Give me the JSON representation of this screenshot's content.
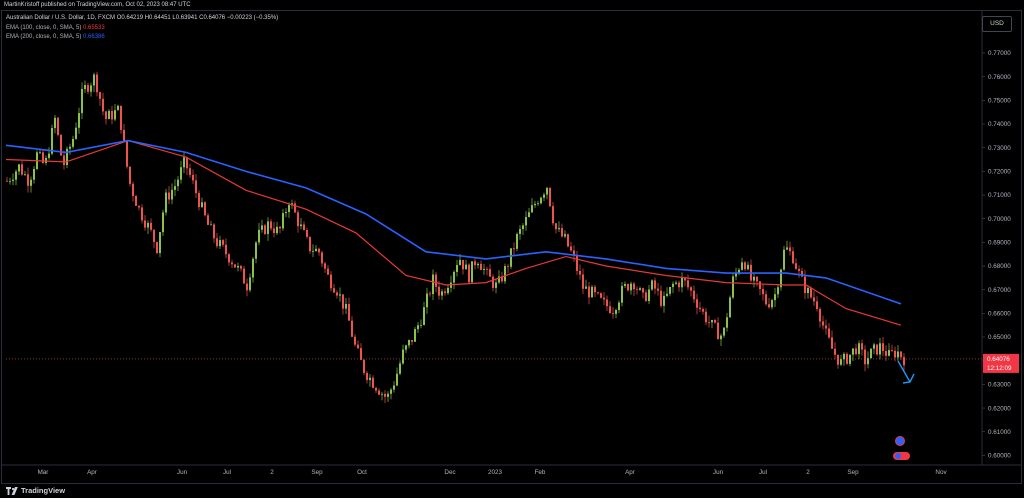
{
  "publisher": "MartinKristoff published on TradingView.com, Oct 02, 2023 08:47 UTC",
  "legend": {
    "title": "Australian Dollar / U.S. Dollar, 1D, FXCM",
    "ohlc": "O0.64219 H0.64451 L0.63941 C0.64076 −0.00223 (−0.35%)",
    "ema100_label": "EMA (100, close, 0, SMA, 5)",
    "ema100_value": "0.65533",
    "ema200_label": "EMA (200, close, 0, SMA, 5)",
    "ema200_value": "0.66386"
  },
  "currency_button": "USD",
  "footer_brand": "TradingView",
  "colors": {
    "up": "#26a69a",
    "up_fill": "#8bc34a",
    "down": "#ef5350",
    "ema100": "#e53935",
    "ema200": "#2962ff",
    "arrow": "#2196f3"
  },
  "chart_data": {
    "type": "candlestick",
    "symbol": "AUD/USD",
    "timeframe": "1D",
    "ylim": [
      0.595,
      0.78
    ],
    "y_ticks": [
      "0.77000",
      "0.76000",
      "0.75000",
      "0.74000",
      "0.73000",
      "0.72000",
      "0.71000",
      "0.70000",
      "0.69000",
      "0.68000",
      "0.67000",
      "0.66000",
      "0.65000",
      "0.64000",
      "0.63000",
      "0.62000",
      "0.61000",
      "0.60000"
    ],
    "x_ticks": [
      "Mar",
      "Apr",
      "Jun",
      "Jul",
      "2",
      "Sep",
      "Oct",
      "Dec",
      "2023",
      "Feb",
      "Apr",
      "Jun",
      "Jul",
      "2",
      "Sep",
      "Nov"
    ],
    "last_price_label": "0.64076",
    "countdown_label": "12:12:09",
    "price_path": [
      [
        0,
        0.716
      ],
      [
        12,
        0.722
      ],
      [
        22,
        0.716
      ],
      [
        30,
        0.727
      ],
      [
        38,
        0.722
      ],
      [
        48,
        0.742
      ],
      [
        56,
        0.722
      ],
      [
        66,
        0.734
      ],
      [
        76,
        0.754
      ],
      [
        88,
        0.76
      ],
      [
        98,
        0.742
      ],
      [
        112,
        0.746
      ],
      [
        122,
        0.716
      ],
      [
        132,
        0.704
      ],
      [
        142,
        0.696
      ],
      [
        150,
        0.688
      ],
      [
        158,
        0.708
      ],
      [
        168,
        0.714
      ],
      [
        178,
        0.724
      ],
      [
        190,
        0.71
      ],
      [
        200,
        0.698
      ],
      [
        210,
        0.69
      ],
      [
        222,
        0.684
      ],
      [
        232,
        0.678
      ],
      [
        240,
        0.672
      ],
      [
        250,
        0.692
      ],
      [
        262,
        0.698
      ],
      [
        272,
        0.694
      ],
      [
        282,
        0.708
      ],
      [
        292,
        0.698
      ],
      [
        302,
        0.688
      ],
      [
        312,
        0.686
      ],
      [
        320,
        0.676
      ],
      [
        330,
        0.67
      ],
      [
        340,
        0.66
      ],
      [
        348,
        0.646
      ],
      [
        356,
        0.637
      ],
      [
        364,
        0.632
      ],
      [
        372,
        0.628
      ],
      [
        380,
        0.624
      ],
      [
        388,
        0.632
      ],
      [
        396,
        0.643
      ],
      [
        406,
        0.65
      ],
      [
        416,
        0.66
      ],
      [
        426,
        0.674
      ],
      [
        434,
        0.668
      ],
      [
        442,
        0.674
      ],
      [
        452,
        0.684
      ],
      [
        462,
        0.676
      ],
      [
        470,
        0.684
      ],
      [
        480,
        0.676
      ],
      [
        490,
        0.671
      ],
      [
        500,
        0.68
      ],
      [
        510,
        0.692
      ],
      [
        520,
        0.7
      ],
      [
        530,
        0.708
      ],
      [
        540,
        0.714
      ],
      [
        548,
        0.696
      ],
      [
        558,
        0.691
      ],
      [
        566,
        0.684
      ],
      [
        576,
        0.671
      ],
      [
        586,
        0.668
      ],
      [
        596,
        0.664
      ],
      [
        606,
        0.662
      ],
      [
        616,
        0.67
      ],
      [
        626,
        0.674
      ],
      [
        636,
        0.666
      ],
      [
        646,
        0.672
      ],
      [
        656,
        0.664
      ],
      [
        666,
        0.672
      ],
      [
        676,
        0.674
      ],
      [
        686,
        0.668
      ],
      [
        696,
        0.66
      ],
      [
        706,
        0.654
      ],
      [
        716,
        0.65
      ],
      [
        726,
        0.674
      ],
      [
        736,
        0.684
      ],
      [
        744,
        0.674
      ],
      [
        752,
        0.67
      ],
      [
        760,
        0.664
      ],
      [
        768,
        0.668
      ],
      [
        778,
        0.688
      ],
      [
        786,
        0.684
      ],
      [
        794,
        0.674
      ],
      [
        802,
        0.668
      ],
      [
        810,
        0.664
      ],
      [
        818,
        0.652
      ],
      [
        826,
        0.644
      ],
      [
        834,
        0.639
      ],
      [
        842,
        0.642
      ],
      [
        850,
        0.646
      ],
      [
        858,
        0.64
      ],
      [
        866,
        0.644
      ],
      [
        874,
        0.646
      ],
      [
        882,
        0.642
      ],
      [
        890,
        0.644
      ],
      [
        897,
        0.641
      ]
    ],
    "ema100_path": [
      [
        0,
        0.725
      ],
      [
        60,
        0.724
      ],
      [
        122,
        0.733
      ],
      [
        180,
        0.726
      ],
      [
        240,
        0.712
      ],
      [
        300,
        0.704
      ],
      [
        350,
        0.694
      ],
      [
        400,
        0.676
      ],
      [
        440,
        0.672
      ],
      [
        480,
        0.673
      ],
      [
        520,
        0.679
      ],
      [
        560,
        0.684
      ],
      [
        600,
        0.68
      ],
      [
        660,
        0.676
      ],
      [
        720,
        0.673
      ],
      [
        780,
        0.672
      ],
      [
        800,
        0.672
      ],
      [
        840,
        0.662
      ],
      [
        895,
        0.655
      ]
    ],
    "ema200_path": [
      [
        0,
        0.731
      ],
      [
        60,
        0.728
      ],
      [
        122,
        0.733
      ],
      [
        180,
        0.728
      ],
      [
        240,
        0.72
      ],
      [
        300,
        0.713
      ],
      [
        360,
        0.702
      ],
      [
        420,
        0.686
      ],
      [
        480,
        0.683
      ],
      [
        540,
        0.686
      ],
      [
        600,
        0.683
      ],
      [
        660,
        0.679
      ],
      [
        720,
        0.677
      ],
      [
        780,
        0.677
      ],
      [
        820,
        0.675
      ],
      [
        895,
        0.664
      ]
    ]
  }
}
